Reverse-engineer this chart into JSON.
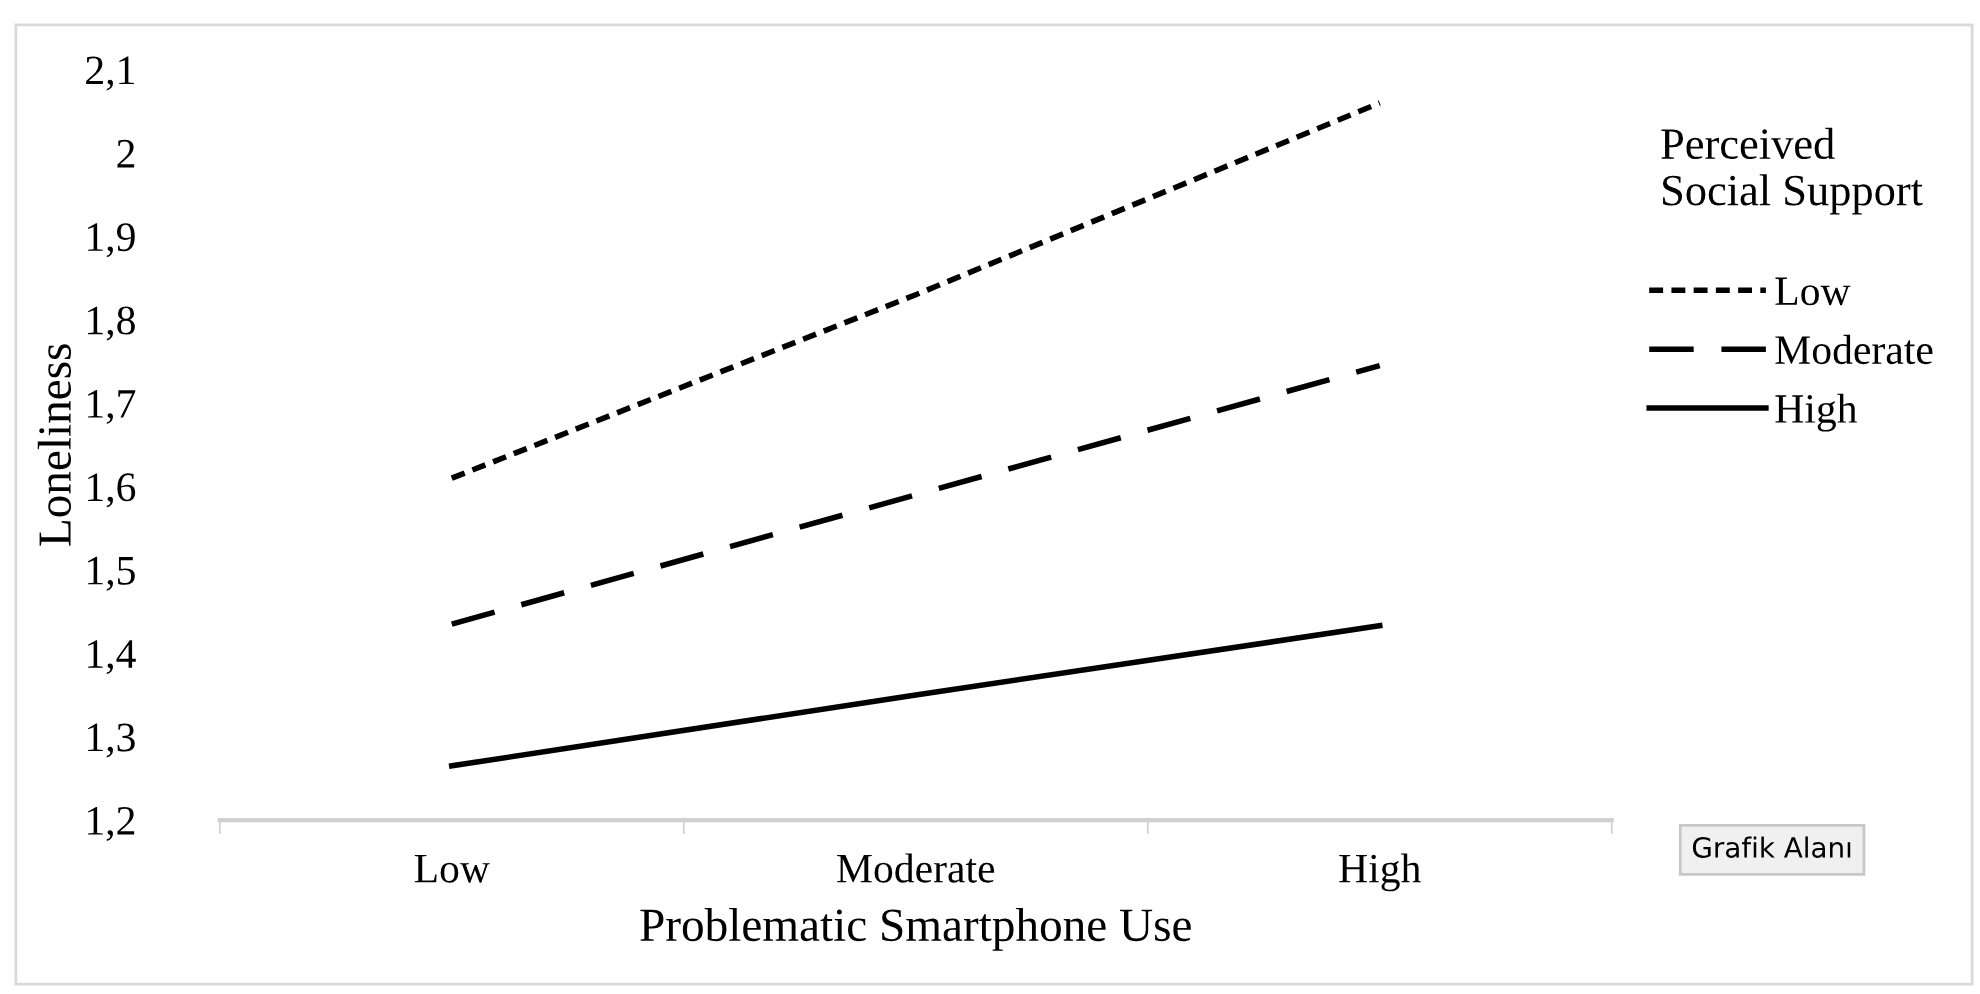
{
  "chart_data": {
    "type": "line",
    "xlabel": "Problematic Smartphone Use",
    "ylabel": "Loneliness",
    "categories": [
      "Low",
      "Moderate",
      "High"
    ],
    "legend_title": "Perceived\nSocial Support",
    "series": [
      {
        "name": "Low",
        "color": "#000000",
        "line_style": "dotted",
        "values": [
          1.61,
          1.83,
          2.06
        ]
      },
      {
        "name": "Moderate",
        "color": "#000000",
        "line_style": "dashed",
        "values": [
          1.435,
          1.59,
          1.745
        ]
      },
      {
        "name": "High",
        "color": "#000000",
        "line_style": "solid",
        "values": [
          1.265,
          1.35,
          1.433
        ]
      }
    ],
    "ylim": [
      1.2,
      2.1
    ],
    "yticks": [
      {
        "value": 1.2,
        "label": "1,2"
      },
      {
        "value": 1.3,
        "label": "1,3"
      },
      {
        "value": 1.4,
        "label": "1,4"
      },
      {
        "value": 1.5,
        "label": "1,5"
      },
      {
        "value": 1.6,
        "label": "1,6"
      },
      {
        "value": 1.7,
        "label": "1,7"
      },
      {
        "value": 1.8,
        "label": "1,8"
      },
      {
        "value": 1.9,
        "label": "1,9"
      },
      2,
      {
        "value": 2.1,
        "label": "2,1"
      }
    ],
    "grid": false,
    "legend": "right",
    "marker": "none",
    "annotations": [
      "Grafik Alanı"
    ]
  }
}
